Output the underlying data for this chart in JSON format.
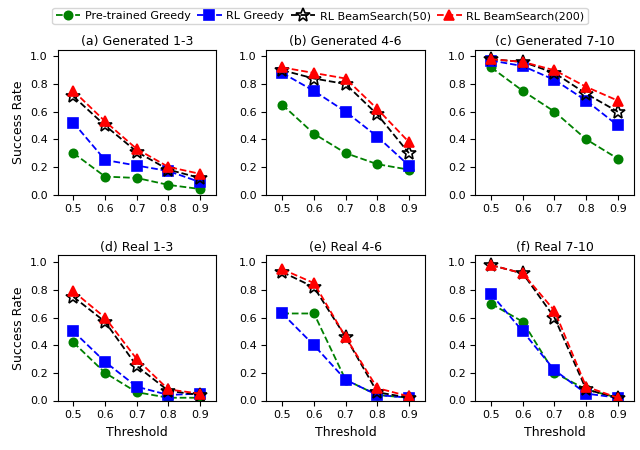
{
  "x": [
    0.5,
    0.6,
    0.7,
    0.8,
    0.9
  ],
  "subplots": [
    {
      "title": "(a) Generated 1-3",
      "pretrained_greedy": [
        0.3,
        0.13,
        0.12,
        0.07,
        0.04
      ],
      "rl_greedy": [
        0.52,
        0.25,
        0.21,
        0.17,
        0.09
      ],
      "rl_beam50": [
        0.71,
        0.5,
        0.31,
        0.18,
        0.12
      ],
      "rl_beam200": [
        0.75,
        0.53,
        0.33,
        0.2,
        0.15
      ]
    },
    {
      "title": "(b) Generated 4-6",
      "pretrained_greedy": [
        0.65,
        0.44,
        0.3,
        0.22,
        0.18
      ],
      "rl_greedy": [
        0.88,
        0.75,
        0.6,
        0.42,
        0.21
      ],
      "rl_beam50": [
        0.9,
        0.84,
        0.8,
        0.58,
        0.3
      ],
      "rl_beam200": [
        0.92,
        0.88,
        0.84,
        0.62,
        0.38
      ]
    },
    {
      "title": "(c) Generated 7-10",
      "pretrained_greedy": [
        0.92,
        0.75,
        0.6,
        0.4,
        0.26
      ],
      "rl_greedy": [
        0.97,
        0.93,
        0.83,
        0.68,
        0.5
      ],
      "rl_beam50": [
        0.98,
        0.96,
        0.88,
        0.73,
        0.6
      ],
      "rl_beam200": [
        0.98,
        0.96,
        0.9,
        0.78,
        0.68
      ]
    },
    {
      "title": "(d) Real 1-3",
      "pretrained_greedy": [
        0.42,
        0.2,
        0.06,
        0.02,
        0.02
      ],
      "rl_greedy": [
        0.5,
        0.28,
        0.1,
        0.04,
        0.05
      ],
      "rl_beam50": [
        0.75,
        0.57,
        0.25,
        0.07,
        0.04
      ],
      "rl_beam200": [
        0.79,
        0.6,
        0.3,
        0.08,
        0.05
      ]
    },
    {
      "title": "(e) Real 4-6",
      "pretrained_greedy": [
        0.63,
        0.63,
        0.15,
        0.04,
        0.02
      ],
      "rl_greedy": [
        0.63,
        0.4,
        0.15,
        0.04,
        0.02
      ],
      "rl_beam50": [
        0.93,
        0.82,
        0.46,
        0.06,
        0.02
      ],
      "rl_beam200": [
        0.95,
        0.85,
        0.46,
        0.09,
        0.03
      ]
    },
    {
      "title": "(f) Real 7-10",
      "pretrained_greedy": [
        0.7,
        0.57,
        0.2,
        0.08,
        0.02
      ],
      "rl_greedy": [
        0.77,
        0.5,
        0.22,
        0.05,
        0.02
      ],
      "rl_beam50": [
        0.98,
        0.92,
        0.6,
        0.08,
        0.02
      ],
      "rl_beam200": [
        0.98,
        0.92,
        0.65,
        0.1,
        0.02
      ]
    }
  ],
  "colors": {
    "pretrained_greedy": "#008000",
    "rl_greedy": "#0000ff",
    "rl_beam50": "#000000",
    "rl_beam200": "#ff0000"
  },
  "legend_labels": [
    "Pre-trained Greedy",
    "RL Greedy",
    "RL BeamSearch(50)",
    "RL BeamSearch(200)"
  ]
}
